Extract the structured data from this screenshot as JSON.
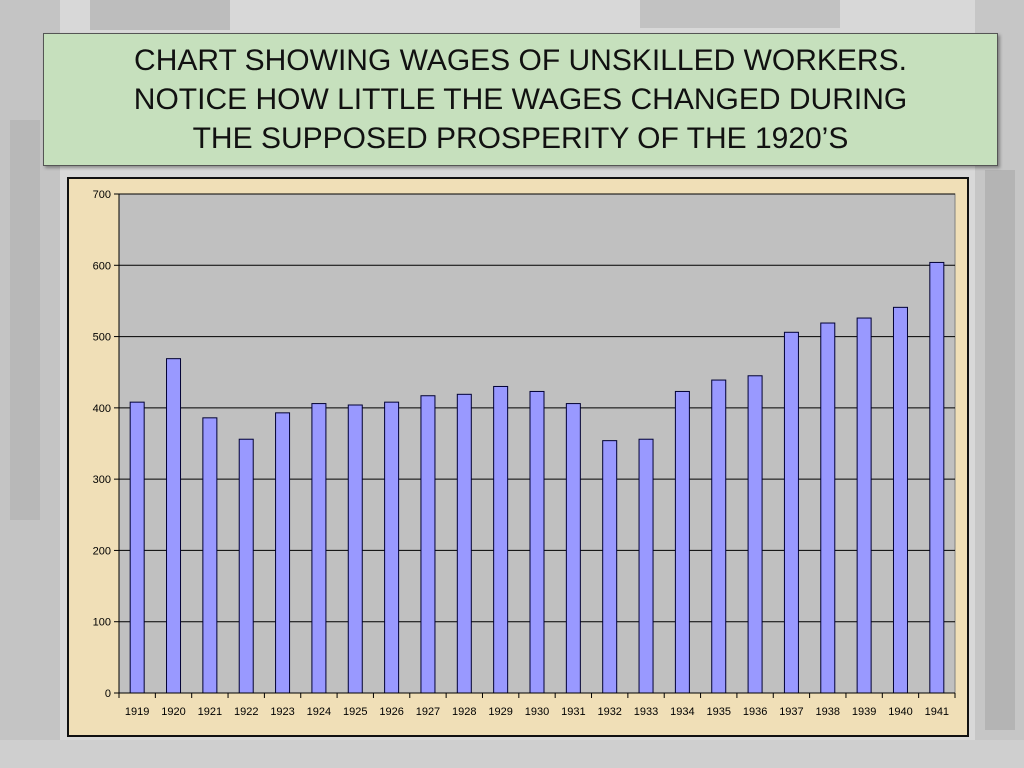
{
  "title": {
    "lines": [
      "CHART SHOWING WAGES OF UNSKILLED WORKERS.",
      "NOTICE HOW LITTLE THE WAGES CHANGED DURING",
      "THE SUPPOSED PROSPERITY OF THE 1920’S"
    ]
  },
  "colors": {
    "bar_fill": "#9999ff",
    "bar_stroke": "#000033",
    "plot_background": "#c0c0c0",
    "chart_frame": "#f0dfb7",
    "title_background": "#c6e0bd"
  },
  "chart_data": {
    "type": "bar",
    "categories": [
      "1919",
      "1920",
      "1921",
      "1922",
      "1923",
      "1924",
      "1925",
      "1926",
      "1927",
      "1928",
      "1929",
      "1930",
      "1931",
      "1932",
      "1933",
      "1934",
      "1935",
      "1936",
      "1937",
      "1938",
      "1939",
      "1940",
      "1941"
    ],
    "values": [
      408,
      469,
      386,
      356,
      393,
      406,
      404,
      408,
      417,
      419,
      430,
      423,
      406,
      354,
      356,
      423,
      439,
      445,
      506,
      519,
      526,
      541,
      604
    ],
    "ylim": [
      0,
      700
    ],
    "yticks": [
      0,
      100,
      200,
      300,
      400,
      500,
      600,
      700
    ],
    "ytick_labels": [
      "0",
      "100",
      "200",
      "300",
      "400",
      "500",
      "600",
      "700"
    ],
    "grid": true,
    "legend": false
  }
}
